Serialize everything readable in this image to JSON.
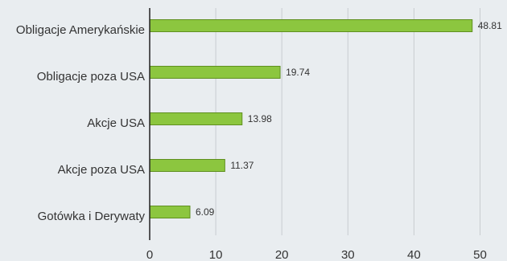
{
  "chart_data": {
    "type": "bar",
    "orientation": "horizontal",
    "title": "",
    "xlabel": "",
    "ylabel": "",
    "categories": [
      "Obligacje Amerykańskie",
      "Obligacje poza USA",
      "Akcje USA",
      "Akcje poza USA",
      "Gotówka i Derywaty"
    ],
    "values": [
      48.81,
      19.74,
      13.98,
      11.37,
      6.09
    ],
    "value_labels": [
      "48.81",
      "19.74",
      "13.98",
      "11.37",
      "6.09"
    ],
    "xlim": [
      0,
      52
    ],
    "ticks": [
      0,
      10,
      20,
      30,
      40,
      50
    ],
    "tick_labels": [
      "0",
      "10",
      "20",
      "30",
      "40",
      "50"
    ],
    "grid": "vertical",
    "legend": "none",
    "colors": {
      "bar_fill": "#8cc63f",
      "bar_stroke": "#5f8f1f",
      "grid": "#c8ccd0",
      "axis": "#222222",
      "background": "#e9edf0"
    }
  }
}
